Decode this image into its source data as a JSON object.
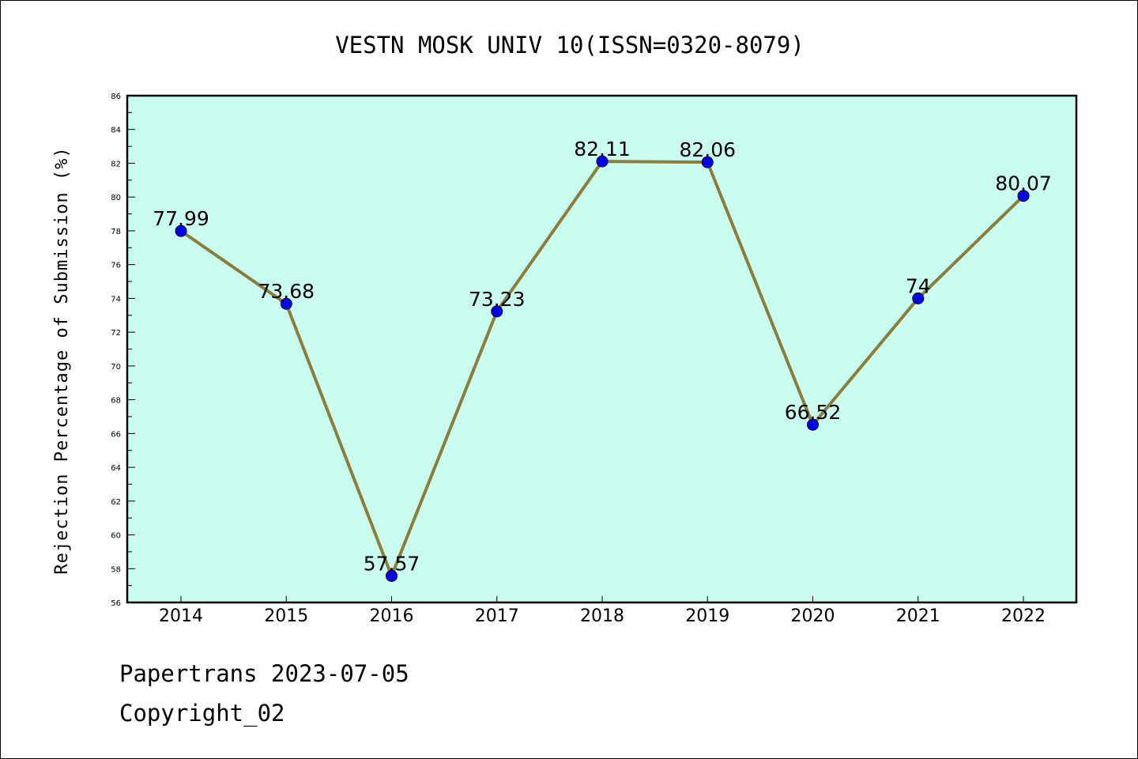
{
  "chart_data": {
    "type": "line",
    "title": "VESTN MOSK UNIV 10(ISSN=0320-8079)",
    "ylabel": "Rejection Percentage of Submission (%)",
    "xlabel": "",
    "categories": [
      "2014",
      "2015",
      "2016",
      "2017",
      "2018",
      "2019",
      "2020",
      "2021",
      "2022"
    ],
    "values": [
      77.99,
      73.68,
      57.57,
      73.23,
      82.11,
      82.06,
      66.52,
      74,
      80.07
    ],
    "data_labels": [
      "77.99",
      "73.68",
      "57.57",
      "73.23",
      "82.11",
      "82.06",
      "66.52",
      "74",
      "80.07"
    ],
    "ylim": [
      56,
      86
    ],
    "yticks": [
      56,
      58,
      60,
      62,
      64,
      66,
      68,
      70,
      72,
      74,
      76,
      78,
      80,
      82,
      84,
      86
    ],
    "grid": false,
    "colors": {
      "plot_background": "#c8fcee",
      "line": "#8b7d3a",
      "marker": "#0000ee",
      "marker_edge": "#000033"
    }
  },
  "footer": {
    "line1": "Papertrans 2023-07-05",
    "line2": "Copyright_02"
  }
}
